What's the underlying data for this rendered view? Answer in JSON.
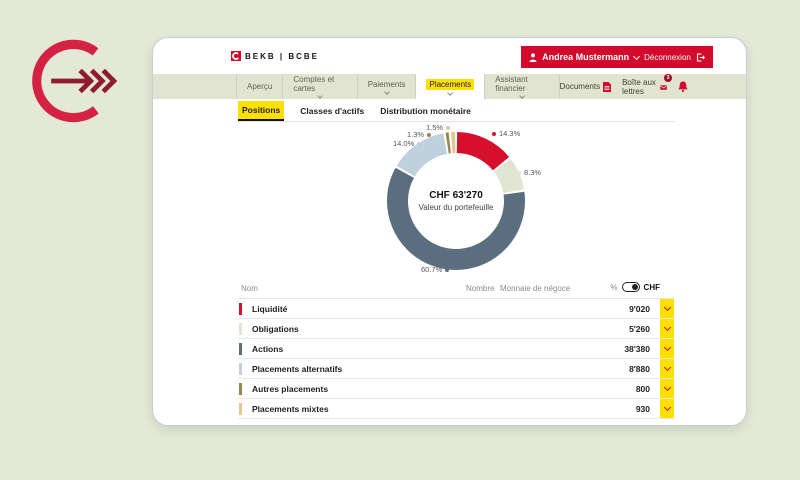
{
  "brand": {
    "logo_text": "BEKB | BCBE",
    "accent_red": "#d20a2c",
    "dark_red": "#8f1b2e",
    "logo_red": "#d42342",
    "highlight_yellow": "#ffe000"
  },
  "user_bar": {
    "name": "Andrea Mustermann",
    "logout_label": "Déconnexion"
  },
  "nav": {
    "items": [
      {
        "label": "Aperçu",
        "active": false
      },
      {
        "label": "Comptes et cartes",
        "active": false
      },
      {
        "label": "Paiements",
        "active": false
      },
      {
        "label": "Placements",
        "active": true
      },
      {
        "label": "Assistant financier",
        "active": false
      }
    ],
    "right": {
      "documents_label": "Documents",
      "mailbox_label": "Boîte aux lettres",
      "mailbox_badge": "3"
    }
  },
  "subnav": {
    "tabs": [
      {
        "label": "Positions",
        "active": true
      },
      {
        "label": "Classes d'actifs",
        "active": false
      },
      {
        "label": "Distribution monétaire",
        "active": false
      }
    ]
  },
  "chart_data": {
    "type": "pie",
    "variant": "donut",
    "center_value": "CHF 63'270",
    "center_label": "Valeur du portefeuille",
    "total_chf": 63270,
    "unit": "CHF",
    "legend_position": "callout-labels",
    "segments": [
      {
        "label": "Liquidité",
        "value_chf": 9020,
        "pct": 14.3,
        "pct_label": "14.3%",
        "display_value": "9'020",
        "color": "#d50f2c"
      },
      {
        "label": "Obligations",
        "value_chf": 5260,
        "pct": 8.3,
        "pct_label": "8.3%",
        "display_value": "5'260",
        "color": "#e0e5d2"
      },
      {
        "label": "Actions",
        "value_chf": 38380,
        "pct": 60.7,
        "pct_label": "60.7%",
        "display_value": "38'380",
        "color": "#5b6e80"
      },
      {
        "label": "Placements alternatifs",
        "value_chf": 8880,
        "pct": 14.0,
        "pct_label": "14.0%",
        "display_value": "8'880",
        "color": "#bfd1dc"
      },
      {
        "label": "Autres placements",
        "value_chf": 800,
        "pct": 1.3,
        "pct_label": "1.3%",
        "display_value": "800",
        "color": "#9a8450"
      },
      {
        "label": "Placements mixtes",
        "value_chf": 930,
        "pct": 1.5,
        "pct_label": "1.5%",
        "display_value": "930",
        "color": "#e3c78d"
      }
    ]
  },
  "table": {
    "headers": {
      "name": "Nom",
      "number": "Nombre",
      "currency": "Monnaie de négoce"
    },
    "unit_toggle": {
      "left_label": "%",
      "right_label": "CHF",
      "selected": "CHF"
    }
  }
}
